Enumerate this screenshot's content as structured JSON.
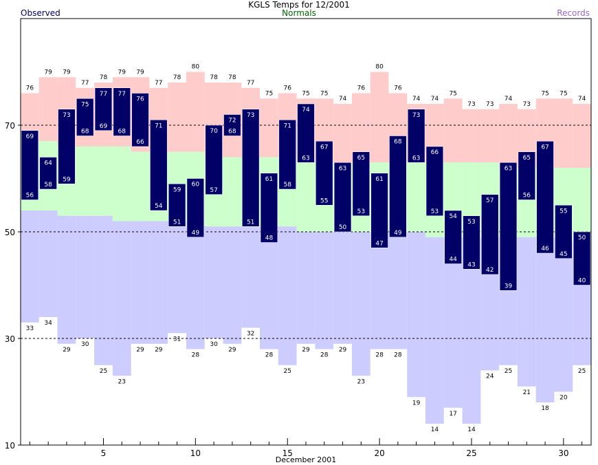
{
  "chart_data": {
    "type": "bar",
    "title": "KGLS Temps for 12/2001",
    "xlabel": "December 2001",
    "ylabel": "",
    "legend": {
      "observed": "Observed",
      "normals": "Normals",
      "records": "Records",
      "placement": "top"
    },
    "ylim": [
      10,
      90
    ],
    "xlim": [
      0.5,
      31.5
    ],
    "y_ticks": [
      10,
      30,
      50,
      70
    ],
    "x_ticks": [
      5,
      10,
      15,
      20,
      25,
      30
    ],
    "grid": "dashed lines at 30, 50, 70",
    "days": [
      1,
      2,
      3,
      4,
      5,
      6,
      7,
      8,
      9,
      10,
      11,
      12,
      13,
      14,
      15,
      16,
      17,
      18,
      19,
      20,
      21,
      22,
      23,
      24,
      25,
      26,
      27,
      28,
      29,
      30,
      31
    ],
    "observed_high": [
      69,
      64,
      73,
      75,
      77,
      77,
      76,
      71,
      59,
      60,
      70,
      72,
      73,
      61,
      71,
      74,
      67,
      63,
      65,
      61,
      68,
      73,
      66,
      54,
      53,
      57,
      63,
      65,
      67,
      55,
      50
    ],
    "observed_low": [
      56,
      58,
      59,
      68,
      69,
      68,
      66,
      54,
      51,
      49,
      57,
      68,
      51,
      48,
      58,
      63,
      55,
      50,
      53,
      47,
      49,
      63,
      53,
      44,
      43,
      42,
      39,
      56,
      46,
      45,
      40
    ],
    "normal_high": [
      69,
      67,
      66,
      66,
      66,
      66,
      65,
      65,
      65,
      65,
      64,
      64,
      64,
      64,
      64,
      63,
      63,
      63,
      63,
      63,
      63,
      63,
      63,
      63,
      63,
      63,
      62,
      62,
      62,
      62,
      62
    ],
    "normal_low": [
      54,
      54,
      53,
      53,
      53,
      52,
      52,
      52,
      52,
      51,
      51,
      51,
      51,
      51,
      51,
      50,
      50,
      50,
      50,
      50,
      50,
      50,
      49,
      49,
      49,
      49,
      49,
      49,
      49,
      49,
      48
    ],
    "record_high": [
      76,
      79,
      79,
      77,
      78,
      79,
      79,
      77,
      78,
      80,
      78,
      78,
      77,
      75,
      76,
      75,
      75,
      74,
      76,
      80,
      76,
      74,
      74,
      75,
      73,
      73,
      74,
      73,
      75,
      75,
      74
    ],
    "record_low": [
      33,
      34,
      29,
      30,
      25,
      23,
      29,
      29,
      31,
      28,
      30,
      29,
      32,
      28,
      25,
      29,
      28,
      29,
      23,
      28,
      28,
      19,
      14,
      17,
      14,
      24,
      25,
      21,
      18,
      20,
      25
    ],
    "colors": {
      "observed_bar": "#000066",
      "record_high_band": "#ffcccc",
      "normal_band": "#ccffcc",
      "record_low_band": "#ccccff",
      "grid": "#000000"
    }
  }
}
